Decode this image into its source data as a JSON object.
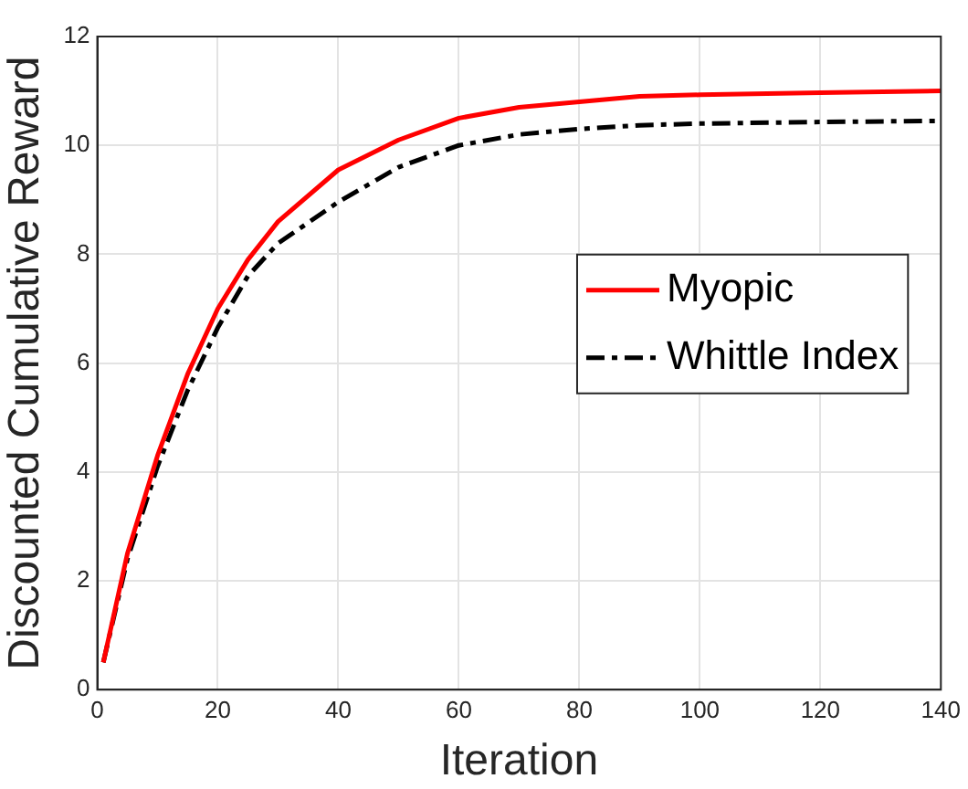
{
  "chart_data": {
    "type": "line",
    "xlabel": "Iteration",
    "ylabel": "Discounted Cumulative Reward",
    "xlim": [
      0,
      140
    ],
    "xticks": [
      0,
      20,
      40,
      60,
      80,
      100,
      120,
      140
    ],
    "ylim": [
      0,
      12
    ],
    "yticks": [
      0,
      2,
      4,
      6,
      8,
      10,
      12
    ],
    "grid": true,
    "legend": "right",
    "marker": "none",
    "series": [
      {
        "name": "Myopic",
        "color": "#ff0000",
        "line_style": "solid",
        "x": [
          1,
          5,
          10,
          15,
          20,
          25,
          30,
          40,
          50,
          60,
          70,
          80,
          90,
          100,
          120,
          140
        ],
        "values": [
          0.5,
          2.5,
          4.3,
          5.8,
          7.0,
          7.9,
          8.6,
          9.55,
          10.1,
          10.5,
          10.7,
          10.8,
          10.9,
          10.93,
          10.97,
          11.0
        ]
      },
      {
        "name": "Whittle Index",
        "color": "#000000",
        "line_style": "dashdot",
        "x": [
          1,
          5,
          10,
          15,
          20,
          25,
          30,
          40,
          50,
          60,
          70,
          80,
          90,
          100,
          120,
          140
        ],
        "values": [
          0.5,
          2.4,
          4.1,
          5.5,
          6.65,
          7.6,
          8.2,
          8.96,
          9.6,
          10.0,
          10.2,
          10.3,
          10.37,
          10.4,
          10.43,
          10.45
        ]
      }
    ]
  }
}
